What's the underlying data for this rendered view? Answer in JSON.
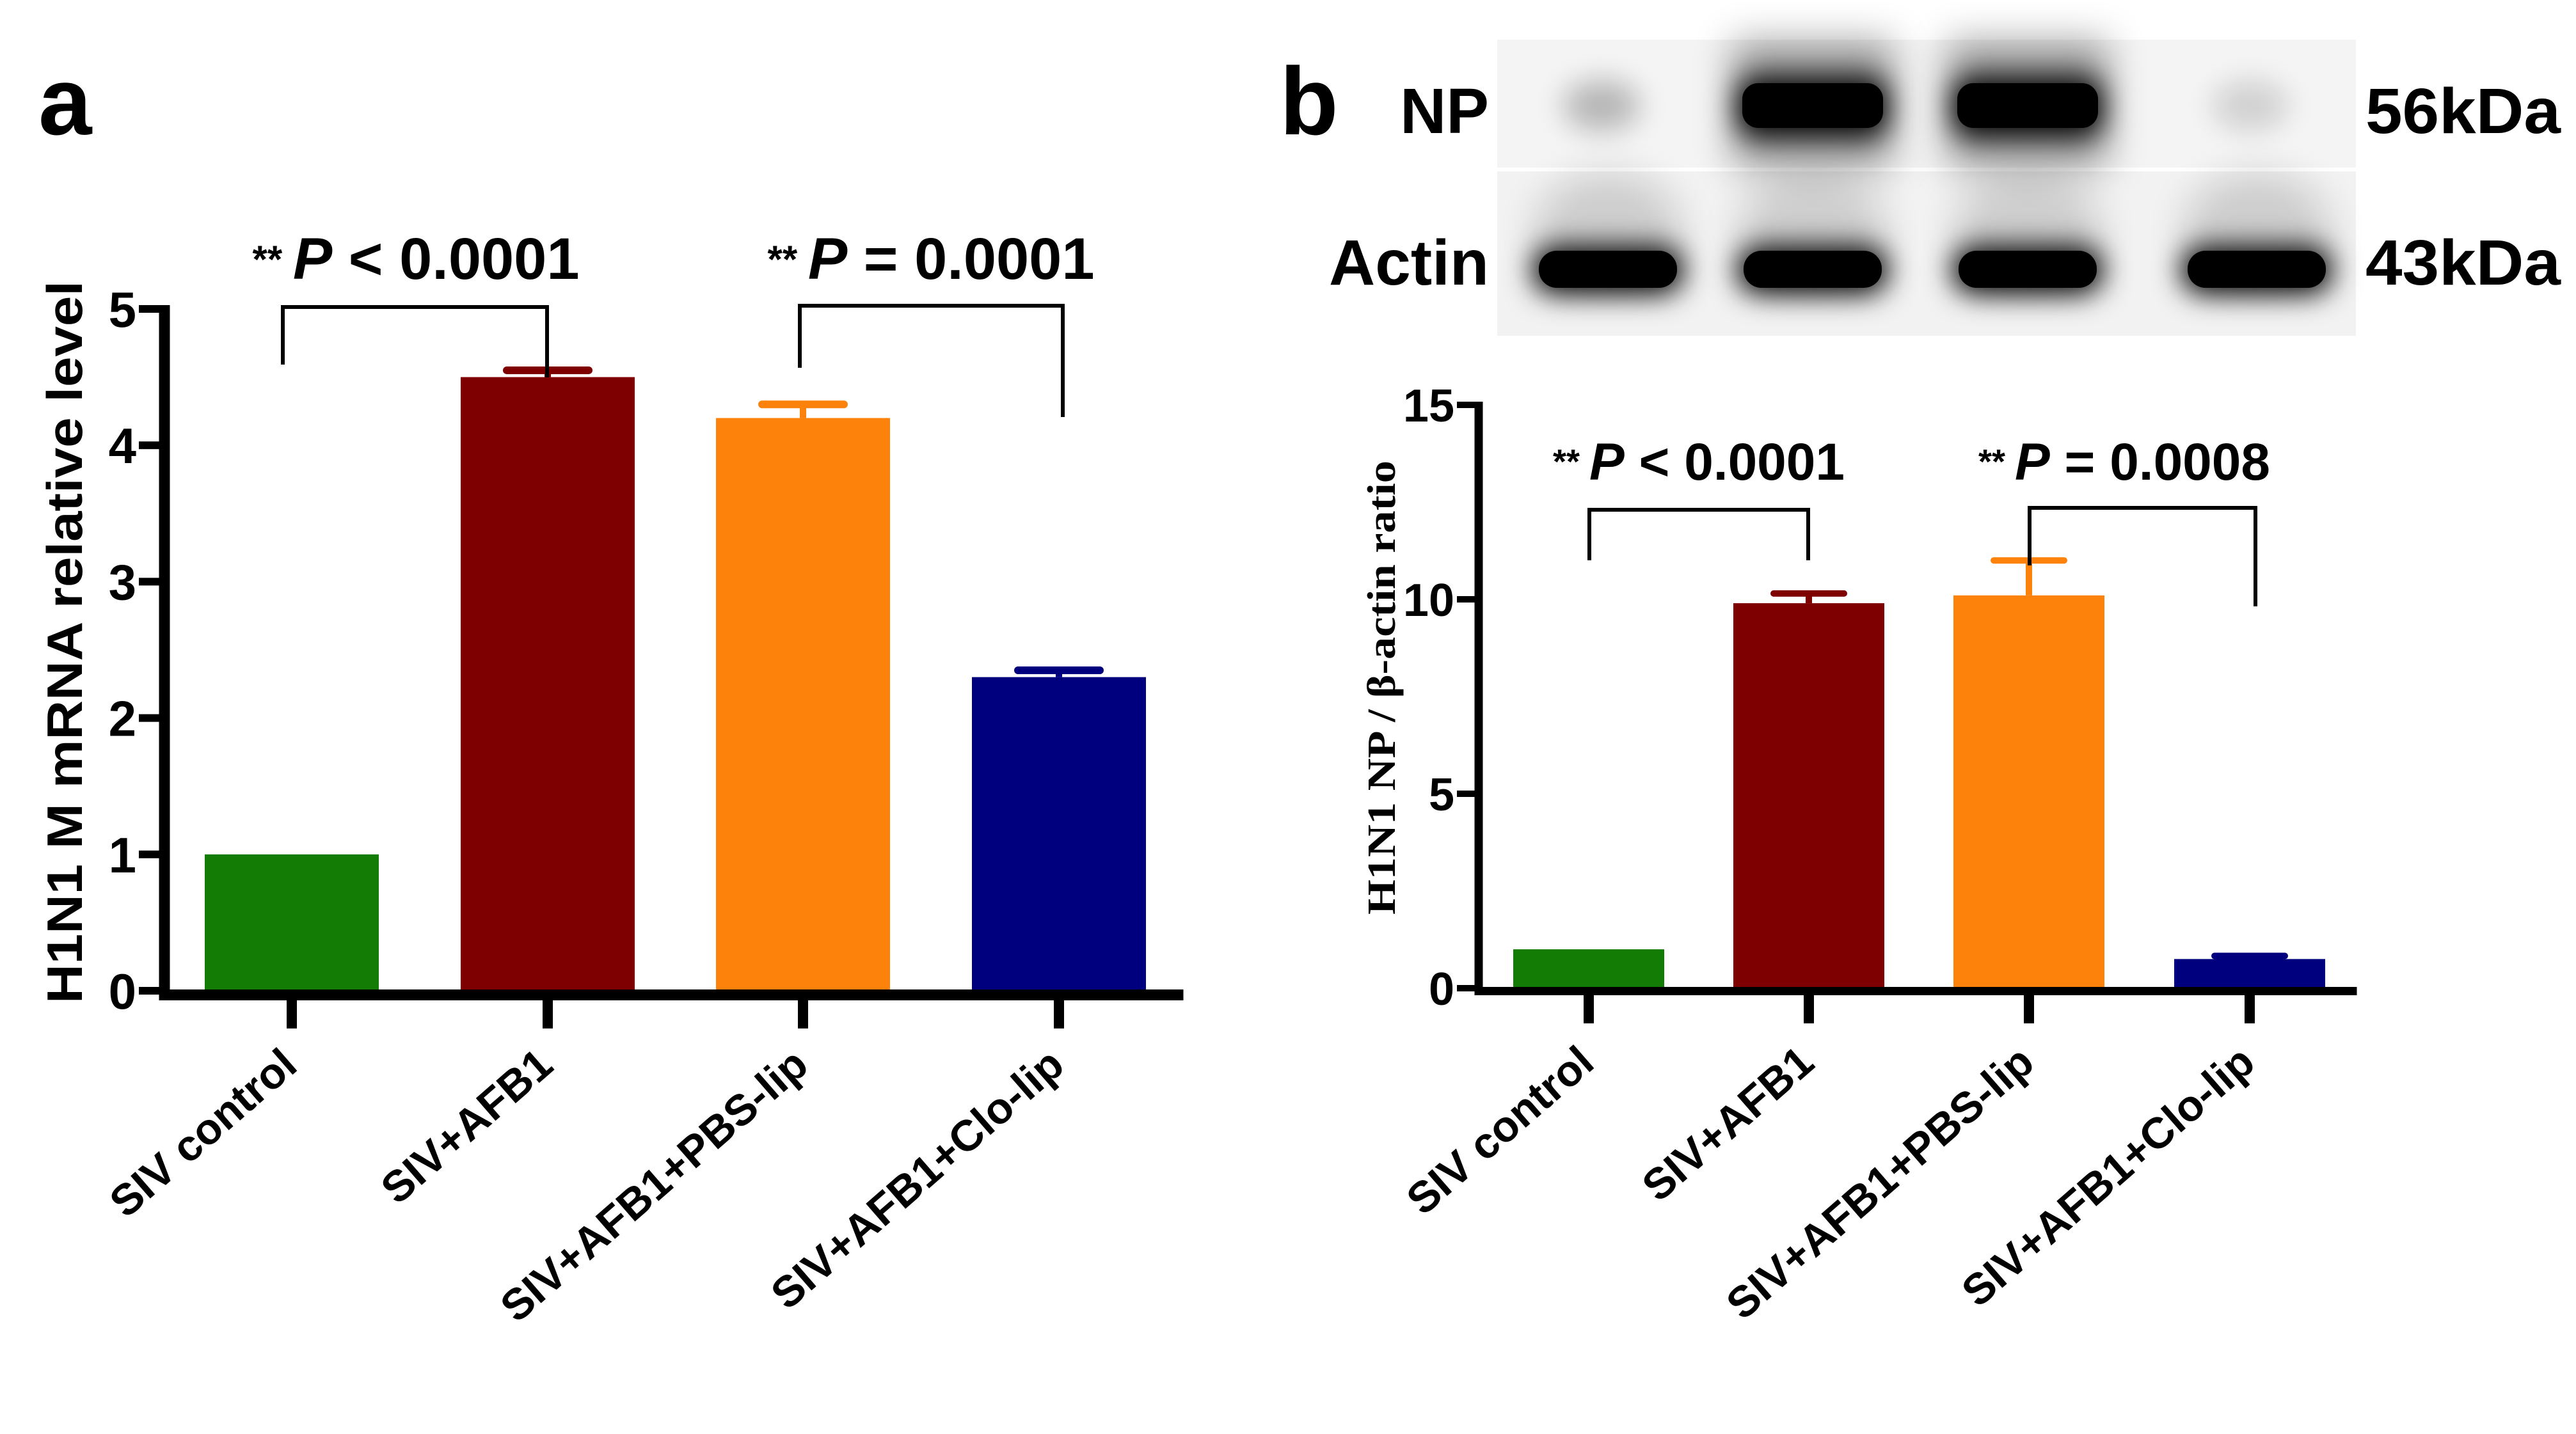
{
  "figure": {
    "panel_a": {
      "letter": "a",
      "ylabel": "H1N1 M mRNA relative level",
      "yticks": [
        "0",
        "1",
        "2",
        "3",
        "4",
        "5"
      ],
      "categories": [
        "SIV control",
        "SIV+AFB1",
        "SIV+AFB1+PBS-lip",
        "SIV+AFB1+Clo-lip"
      ],
      "significance": [
        {
          "stars": "**",
          "p": "P",
          "op": " < ",
          "value": "0.0001",
          "from": 0,
          "to": 1
        },
        {
          "stars": "**",
          "p": "P",
          "op": " = ",
          "value": "0.0001",
          "from": 2,
          "to": 3
        }
      ]
    },
    "panel_b": {
      "letter": "b",
      "blot": {
        "rows": [
          {
            "label": "NP",
            "mw": "56kDa"
          },
          {
            "label": "Actin",
            "mw": "43kDa"
          }
        ]
      },
      "ylabel": "H1N1 NP / β-actin ratio",
      "yticks": [
        "0",
        "5",
        "10",
        "15"
      ],
      "categories": [
        "SIV control",
        "SIV+AFB1",
        "SIV+AFB1+PBS-lip",
        "SIV+AFB1+Clo-lip"
      ],
      "significance": [
        {
          "stars": "**",
          "p": "P",
          "op": " < ",
          "value": "0.0001",
          "from": 0,
          "to": 1
        },
        {
          "stars": "**",
          "p": "P",
          "op": " = ",
          "value": "0.0008",
          "from": 2,
          "to": 3
        }
      ]
    },
    "colors": {
      "siv_control": "#127C04",
      "siv_afb1": "#7F0000",
      "siv_afb1_pbs_lip": "#FC820C",
      "siv_afb1_clo_lip": "#00007F"
    }
  },
  "chart_data": [
    {
      "type": "bar",
      "panel": "a",
      "title": "",
      "xlabel": "",
      "ylabel": "H1N1 M mRNA relative level",
      "categories": [
        "SIV control",
        "SIV+AFB1",
        "SIV+AFB1+PBS-lip",
        "SIV+AFB1+Clo-lip"
      ],
      "values": [
        1.0,
        4.5,
        4.2,
        2.3
      ],
      "error": [
        0.0,
        0.05,
        0.1,
        0.05
      ],
      "colors": [
        "#127C04",
        "#7F0000",
        "#FC820C",
        "#00007F"
      ],
      "ylim": [
        0,
        5
      ],
      "yticks": [
        0,
        1,
        2,
        3,
        4,
        5
      ],
      "grid": false,
      "legend": null,
      "annotations": [
        {
          "text": "** P < 0.0001",
          "between": [
            "SIV control",
            "SIV+AFB1"
          ]
        },
        {
          "text": "** P = 0.0001",
          "between": [
            "SIV+AFB1+PBS-lip",
            "SIV+AFB1+Clo-lip"
          ]
        }
      ]
    },
    {
      "type": "bar",
      "panel": "b",
      "title": "",
      "xlabel": "",
      "ylabel": "H1N1 NP / β-actin ratio",
      "categories": [
        "SIV control",
        "SIV+AFB1",
        "SIV+AFB1+PBS-lip",
        "SIV+AFB1+Clo-lip"
      ],
      "values": [
        1.0,
        9.9,
        10.1,
        0.75
      ],
      "error": [
        0.0,
        0.25,
        0.9,
        0.08
      ],
      "colors": [
        "#127C04",
        "#7F0000",
        "#FC820C",
        "#00007F"
      ],
      "ylim": [
        0,
        15
      ],
      "yticks": [
        0,
        5,
        10,
        15
      ],
      "grid": false,
      "legend": null,
      "annotations": [
        {
          "text": "** P < 0.0001",
          "between": [
            "SIV control",
            "SIV+AFB1"
          ]
        },
        {
          "text": "** P = 0.0008",
          "between": [
            "SIV+AFB1+PBS-lip",
            "SIV+AFB1+Clo-lip"
          ]
        }
      ]
    }
  ]
}
